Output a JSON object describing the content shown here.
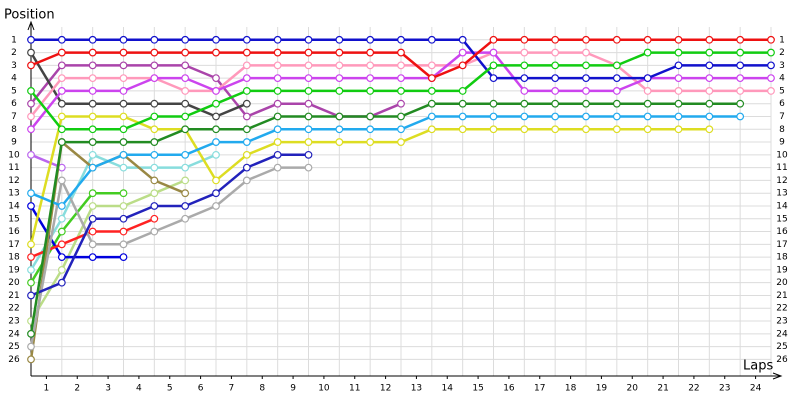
{
  "chart_data": {
    "type": "line",
    "x_label": "Laps",
    "y_label": "Position",
    "x": [
      0,
      1,
      2,
      3,
      4,
      5,
      6,
      7,
      8,
      9,
      10,
      11,
      12,
      13,
      14,
      15,
      16,
      17,
      18,
      19,
      20,
      21,
      22,
      23,
      24
    ],
    "xlim": [
      0,
      24
    ],
    "ylim": [
      27.3,
      0
    ],
    "xticks": [
      {
        "value": 0.5,
        "label": "1"
      },
      {
        "value": 1.5,
        "label": "2"
      },
      {
        "value": 2.5,
        "label": "3"
      },
      {
        "value": 3.5,
        "label": "4"
      },
      {
        "value": 4.5,
        "label": "5"
      },
      {
        "value": 5.5,
        "label": "6"
      },
      {
        "value": 6.5,
        "label": "7"
      },
      {
        "value": 7.5,
        "label": "8"
      },
      {
        "value": 8.5,
        "label": "9"
      },
      {
        "value": 9.5,
        "label": "10"
      },
      {
        "value": 10.5,
        "label": "11"
      },
      {
        "value": 11.5,
        "label": "12"
      },
      {
        "value": 12.5,
        "label": "13"
      },
      {
        "value": 13.5,
        "label": "14"
      },
      {
        "value": 14.5,
        "label": "15"
      },
      {
        "value": 15.5,
        "label": "16"
      },
      {
        "value": 16.5,
        "label": "17"
      },
      {
        "value": 17.5,
        "label": "18"
      },
      {
        "value": 18.5,
        "label": "19"
      },
      {
        "value": 19.5,
        "label": "20"
      },
      {
        "value": 20.5,
        "label": "21"
      },
      {
        "value": 21.5,
        "label": "22"
      },
      {
        "value": 22.5,
        "label": "23"
      },
      {
        "value": 23.5,
        "label": "24"
      }
    ],
    "yticks": [
      1,
      2,
      3,
      4,
      5,
      6,
      7,
      8,
      9,
      10,
      11,
      12,
      13,
      14,
      15,
      16,
      17,
      18,
      19,
      20,
      21,
      22,
      23,
      24,
      25,
      26
    ],
    "grid": true,
    "series": [
      {
        "color": "#ee1111",
        "values": [
          3,
          2,
          2,
          2,
          2,
          2,
          2,
          2,
          2,
          2,
          2,
          2,
          2,
          4,
          3,
          1,
          1,
          1,
          1,
          1,
          1,
          1,
          1,
          1,
          1
        ]
      },
      {
        "color": "#11cc11",
        "values": [
          5,
          8,
          8,
          8,
          7,
          7,
          6,
          5,
          5,
          5,
          5,
          5,
          5,
          5,
          5,
          3,
          3,
          3,
          3,
          3,
          2,
          2,
          2,
          2,
          2
        ]
      },
      {
        "color": "#1111cc",
        "values": [
          1,
          1,
          1,
          1,
          1,
          1,
          1,
          1,
          1,
          1,
          1,
          1,
          1,
          1,
          1,
          4,
          4,
          4,
          4,
          4,
          4,
          3,
          3,
          3,
          3
        ]
      },
      {
        "color": "#cc44ee",
        "values": [
          8,
          5,
          5,
          5,
          4,
          4,
          5,
          4,
          4,
          4,
          4,
          4,
          4,
          4,
          2,
          2,
          5,
          5,
          5,
          5,
          4,
          4,
          4,
          4,
          4
        ]
      },
      {
        "color": "#ff99bb",
        "values": [
          7,
          4,
          4,
          4,
          4,
          5,
          5,
          3,
          3,
          3,
          3,
          3,
          3,
          3,
          3,
          2,
          2,
          2,
          2,
          3,
          5,
          5,
          5,
          5,
          5
        ]
      },
      {
        "color": "#228b22",
        "values": [
          24,
          9,
          9,
          9,
          9,
          8,
          8,
          8,
          7,
          7,
          7,
          7,
          7,
          6,
          6,
          6,
          6,
          6,
          6,
          6,
          6,
          6,
          6,
          6,
          null
        ]
      },
      {
        "color": "#22aaee",
        "values": [
          13,
          14,
          11,
          10,
          10,
          10,
          9,
          9,
          8,
          8,
          8,
          8,
          8,
          7,
          7,
          7,
          7,
          7,
          7,
          7,
          7,
          7,
          7,
          7,
          null
        ]
      },
      {
        "color": "#dddd22",
        "values": [
          17,
          7,
          7,
          7,
          8,
          8,
          12,
          10,
          9,
          9,
          9,
          9,
          9,
          8,
          8,
          8,
          8,
          8,
          8,
          8,
          8,
          8,
          8,
          null,
          null
        ]
      },
      {
        "color": "#2222bb",
        "values": [
          21,
          20,
          15,
          15,
          14,
          14,
          13,
          11,
          10,
          10,
          null,
          null,
          null,
          null,
          null,
          null,
          null,
          null,
          null,
          null,
          null,
          null,
          null,
          null,
          null
        ]
      },
      {
        "color": "#aaaaaa",
        "values": [
          25,
          12,
          17,
          17,
          16,
          15,
          14,
          12,
          11,
          11,
          null,
          null,
          null,
          null,
          null,
          null,
          null,
          null,
          null,
          null,
          null,
          null,
          null,
          null,
          null
        ]
      },
      {
        "color": "#444444",
        "values": [
          2,
          6,
          6,
          6,
          6,
          6,
          7,
          6,
          null,
          null,
          null,
          null,
          null,
          null,
          null,
          null,
          null,
          null,
          null,
          null,
          null,
          null,
          null,
          null,
          null
        ]
      },
      {
        "color": "#998844",
        "values": [
          26,
          9,
          11,
          10,
          12,
          13,
          null,
          null,
          null,
          null,
          null,
          null,
          null,
          null,
          null,
          null,
          null,
          null,
          null,
          null,
          null,
          null,
          null,
          null,
          null
        ]
      },
      {
        "color": "#aa44aa",
        "values": [
          6,
          3,
          3,
          3,
          3,
          3,
          4,
          7,
          6,
          6,
          7,
          7,
          6,
          null,
          null,
          null,
          null,
          null,
          null,
          null,
          null,
          null,
          null,
          null,
          null
        ]
      },
      {
        "color": "#ff2222",
        "values": [
          18,
          17,
          16,
          16,
          15,
          null,
          null,
          null,
          null,
          null,
          null,
          null,
          null,
          null,
          null,
          null,
          null,
          null,
          null,
          null,
          null,
          null,
          null,
          null,
          null
        ]
      },
      {
        "color": "#0000dd",
        "values": [
          14,
          18,
          18,
          18,
          null,
          null,
          null,
          null,
          null,
          null,
          null,
          null,
          null,
          null,
          null,
          null,
          null,
          null,
          null,
          null,
          null,
          null,
          null,
          null,
          null
        ]
      },
      {
        "color": "#44cc22",
        "values": [
          20,
          16,
          13,
          13,
          null,
          null,
          null,
          null,
          null,
          null,
          null,
          null,
          null,
          null,
          null,
          null,
          null,
          null,
          null,
          null,
          null,
          null,
          null,
          null,
          null
        ]
      },
      {
        "color": "#bbdd88",
        "values": [
          23,
          19,
          14,
          14,
          13,
          12,
          null,
          null,
          null,
          null,
          null,
          null,
          null,
          null,
          null,
          null,
          null,
          null,
          null,
          null,
          null,
          null,
          null,
          null,
          null
        ]
      },
      {
        "color": "#88dddd",
        "values": [
          19,
          15,
          10,
          11,
          11,
          11,
          10,
          null,
          null,
          null,
          null,
          null,
          null,
          null,
          null,
          null,
          null,
          null,
          null,
          null,
          null,
          null,
          null,
          null,
          null
        ]
      },
      {
        "color": "#bb66ee",
        "values": [
          10,
          11,
          null,
          null,
          null,
          null,
          null,
          null,
          null,
          null,
          null,
          null,
          null,
          null,
          null,
          null,
          null,
          null,
          null,
          null,
          null,
          null,
          null,
          null,
          null
        ]
      }
    ]
  }
}
